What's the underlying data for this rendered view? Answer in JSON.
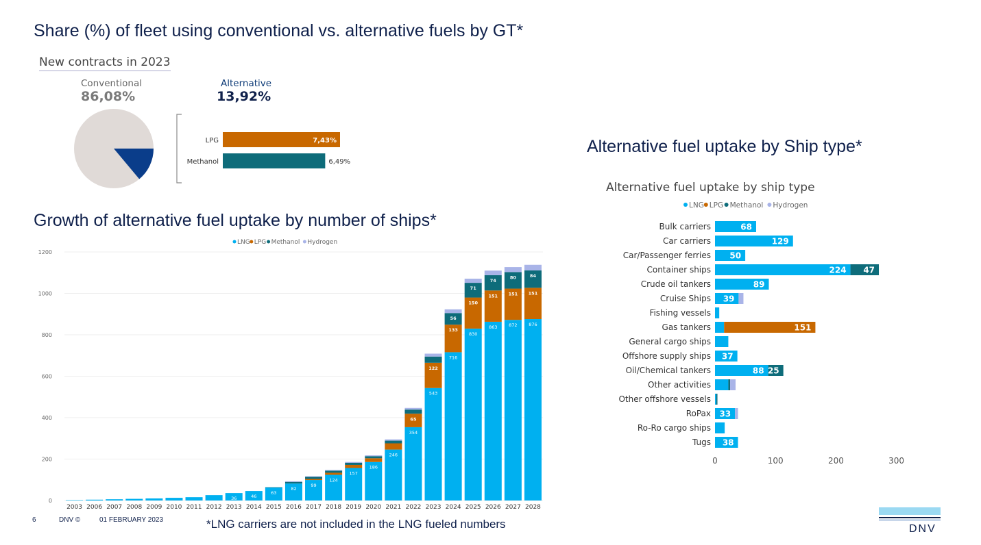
{
  "headings": {
    "fleet_share": "Share (%) of fleet using conventional vs. alternative fuels by GT*",
    "growth": "Growth of alternative fuel uptake by number of ships*",
    "ship_type": "Alternative fuel uptake by Ship type*"
  },
  "kpi": {
    "title": "New contracts in 2023",
    "conventional_label": "Conventional",
    "conventional_value": "86,08%",
    "alternative_label": "Alternative",
    "alternative_value": "13,92%"
  },
  "footer": {
    "page_number": "6",
    "copyright": "DNV ©",
    "date": "01 FEBRUARY 2023",
    "note": "*LNG carriers are not included in the LNG fueled numbers",
    "logo_text": "DNV"
  },
  "colors": {
    "LNG": "#00b0f0",
    "LPG": "#c86800",
    "Methanol": "#0e6c7a",
    "Hydrogen": "#a9b4e8",
    "pie_conventional": "#e0dad7",
    "pie_alternative": "#0a3d8a"
  },
  "chart_data": [
    {
      "type": "pie",
      "title": "New contracts in 2023",
      "categories": [
        "Conventional",
        "Alternative"
      ],
      "values": [
        86.08,
        13.92
      ]
    },
    {
      "type": "bar",
      "orientation": "horizontal",
      "categories": [
        "LPG",
        "Methanol"
      ],
      "values": [
        7.43,
        6.49
      ],
      "labels": [
        "7,43%",
        "6,49%"
      ]
    },
    {
      "type": "bar",
      "stacked": true,
      "title": "",
      "legend": [
        "LNG",
        "LPG",
        "Methanol",
        "Hydrogen"
      ],
      "legend_placement": "top-center",
      "categories": [
        "2003",
        "2006",
        "2007",
        "2008",
        "2009",
        "2010",
        "2011",
        "2012",
        "2013",
        "2014",
        "2015",
        "2016",
        "2017",
        "2018",
        "2019",
        "2020",
        "2021",
        "2022",
        "2023",
        "2024",
        "2025",
        "2026",
        "2027",
        "2028"
      ],
      "ylim": [
        0,
        1200
      ],
      "yticks": [
        0,
        200,
        400,
        600,
        800,
        1000,
        1200
      ],
      "grid": true,
      "series": [
        {
          "name": "LNG",
          "values": [
            2,
            4,
            6,
            8,
            10,
            13,
            16,
            26,
            36,
            46,
            63,
            82,
            99,
            124,
            157,
            186,
            246,
            354,
            543,
            716,
            830,
            863,
            872,
            876
          ],
          "labels": [
            "",
            "",
            "",
            "",
            "",
            "",
            "",
            "",
            "36",
            "46",
            "63",
            "82",
            "99",
            "124",
            "157",
            "186",
            "246",
            "354",
            "543",
            "716",
            "830",
            "863",
            "872",
            "876"
          ]
        },
        {
          "name": "LPG",
          "values": [
            0,
            0,
            0,
            0,
            0,
            0,
            0,
            0,
            0,
            0,
            0,
            0,
            5,
            10,
            15,
            18,
            30,
            65,
            122,
            133,
            150,
            151,
            151,
            151
          ],
          "labels": [
            "",
            "",
            "",
            "",
            "",
            "",
            "",
            "",
            "",
            "",
            "",
            "",
            "",
            "",
            "",
            "",
            "",
            "65",
            "122",
            "133",
            "150",
            "151",
            "151",
            "151"
          ]
        },
        {
          "name": "Methanol",
          "values": [
            0,
            0,
            0,
            0,
            0,
            0,
            0,
            0,
            0,
            0,
            1,
            8,
            10,
            10,
            10,
            10,
            13,
            20,
            30,
            56,
            71,
            74,
            80,
            84
          ],
          "labels": [
            "",
            "",
            "",
            "",
            "",
            "",
            "",
            "",
            "",
            "",
            "",
            "",
            "",
            "",
            "",
            "",
            "",
            "",
            "",
            "56",
            "71",
            "74",
            "80",
            "84"
          ]
        },
        {
          "name": "Hydrogen",
          "values": [
            0,
            0,
            0,
            0,
            0,
            0,
            0,
            0,
            0,
            0,
            0,
            3,
            3,
            3,
            4,
            4,
            6,
            8,
            14,
            18,
            20,
            22,
            24,
            27
          ],
          "labels": []
        }
      ]
    },
    {
      "type": "bar",
      "orientation": "horizontal",
      "stacked": true,
      "title": "Alternative fuel uptake by ship type",
      "legend": [
        "LNG",
        "LPG",
        "Methanol",
        "Hydrogen"
      ],
      "legend_placement": "top-center",
      "categories": [
        "Bulk carriers",
        "Car carriers",
        "Car/Passenger ferries",
        "Container ships",
        "Crude oil tankers",
        "Cruise Ships",
        "Fishing vessels",
        "Gas tankers",
        "General cargo ships",
        "Offshore supply ships",
        "Oil/Chemical tankers",
        "Other activities",
        "Other offshore vessels",
        "RoPax",
        "Ro-Ro cargo ships",
        "Tugs"
      ],
      "xlim": [
        0,
        330
      ],
      "xticks": [
        0,
        100,
        200,
        300
      ],
      "series": [
        {
          "name": "LNG",
          "values": [
            68,
            129,
            50,
            224,
            89,
            39,
            7,
            15,
            22,
            37,
            88,
            22,
            2,
            33,
            16,
            38
          ],
          "labels": [
            "68",
            "129",
            "50",
            "224",
            "89",
            "39",
            "",
            "",
            "",
            "37",
            "88",
            "",
            "",
            "33",
            "",
            "38"
          ]
        },
        {
          "name": "LPG",
          "values": [
            0,
            0,
            0,
            0,
            0,
            0,
            0,
            151,
            0,
            0,
            0,
            0,
            0,
            0,
            0,
            0
          ],
          "labels": [
            "",
            "",
            "",
            "",
            "",
            "",
            "",
            "151",
            "",
            "",
            "",
            "",
            "",
            "",
            "",
            ""
          ]
        },
        {
          "name": "Methanol",
          "values": [
            0,
            0,
            0,
            47,
            0,
            0,
            0,
            0,
            0,
            0,
            25,
            3,
            2,
            0,
            0,
            0
          ],
          "labels": [
            "",
            "",
            "",
            "47",
            "",
            "",
            "",
            "",
            "",
            "",
            "25",
            "",
            "",
            "",
            "",
            ""
          ]
        },
        {
          "name": "Hydrogen",
          "values": [
            0,
            0,
            0,
            0,
            0,
            8,
            0,
            0,
            0,
            0,
            0,
            9,
            0,
            5,
            0,
            0
          ],
          "labels": []
        }
      ]
    }
  ]
}
